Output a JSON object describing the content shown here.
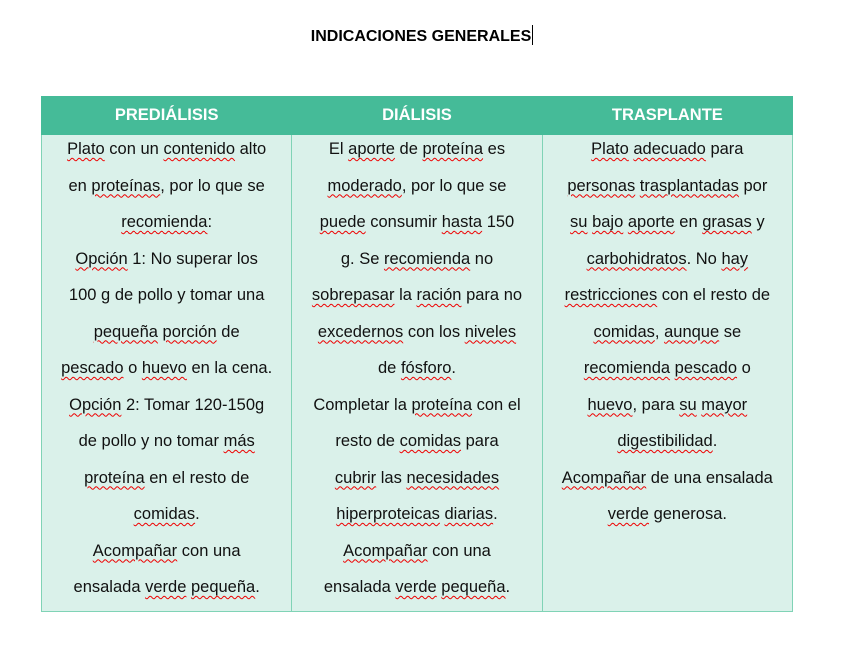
{
  "document": {
    "title": "INDICACIONES GENERALES"
  },
  "table": {
    "headers": [
      "PREDIÁLISIS",
      "DIÁLISIS",
      "TRASPLANTE"
    ],
    "columns": [
      [
        "Plato con un contenido alto",
        "en proteínas, por lo que se",
        "recomienda:",
        "Opción 1: No superar los",
        "100 g de pollo y tomar una",
        "pequeña porción de",
        "pescado o huevo en la cena.",
        "Opción 2: Tomar 120-150g",
        "de pollo y no tomar más",
        "proteína en el resto de",
        "comidas.",
        "Acompañar con una",
        "ensalada verde pequeña."
      ],
      [
        "El aporte de proteína es",
        "moderado, por lo que se",
        "puede consumir hasta 150",
        "g. Se recomienda no",
        "sobrepasar la ración para no",
        "excedernos con los niveles",
        "de fósforo.",
        "Completar la proteína con el",
        "resto de comidas para",
        "cubrir las necesidades",
        "hiperproteicas diarias.",
        "Acompañar con una",
        "ensalada verde pequeña."
      ],
      [
        "Plato adecuado para",
        "personas trasplantadas por",
        "su bajo aporte en grasas y",
        "carbohidratos. No hay",
        "restricciones con el resto de",
        "comidas, aunque se",
        "recomienda pescado o",
        "huevo, para su mayor",
        "digestibilidad.",
        "Acompañar de una ensalada",
        "verde generosa."
      ]
    ]
  },
  "spellcheck_flagged": [
    "Plato",
    "contenido",
    "proteínas",
    "recomienda",
    "Opción",
    "pequeña",
    "porción",
    "pescado",
    "huevo",
    "más",
    "proteína",
    "comidas",
    "Acompañar",
    "verde",
    "aporte",
    "moderado",
    "puede",
    "hasta",
    "sobrepasar",
    "ración",
    "excedernos",
    "niveles",
    "fósforo",
    "cubrir",
    "necesidades",
    "hiperproteicas",
    "diarias",
    "adecuado",
    "personas",
    "trasplantadas",
    "su",
    "bajo",
    "grasas",
    "carbohidratos",
    "hay",
    "restricciones",
    "aunque",
    "mayor",
    "digestibilidad"
  ],
  "colors": {
    "header_bg": "#45bb98",
    "cell_bg": "#daf1ea",
    "border": "#80d3b6",
    "spellcheck": "#e00000"
  }
}
